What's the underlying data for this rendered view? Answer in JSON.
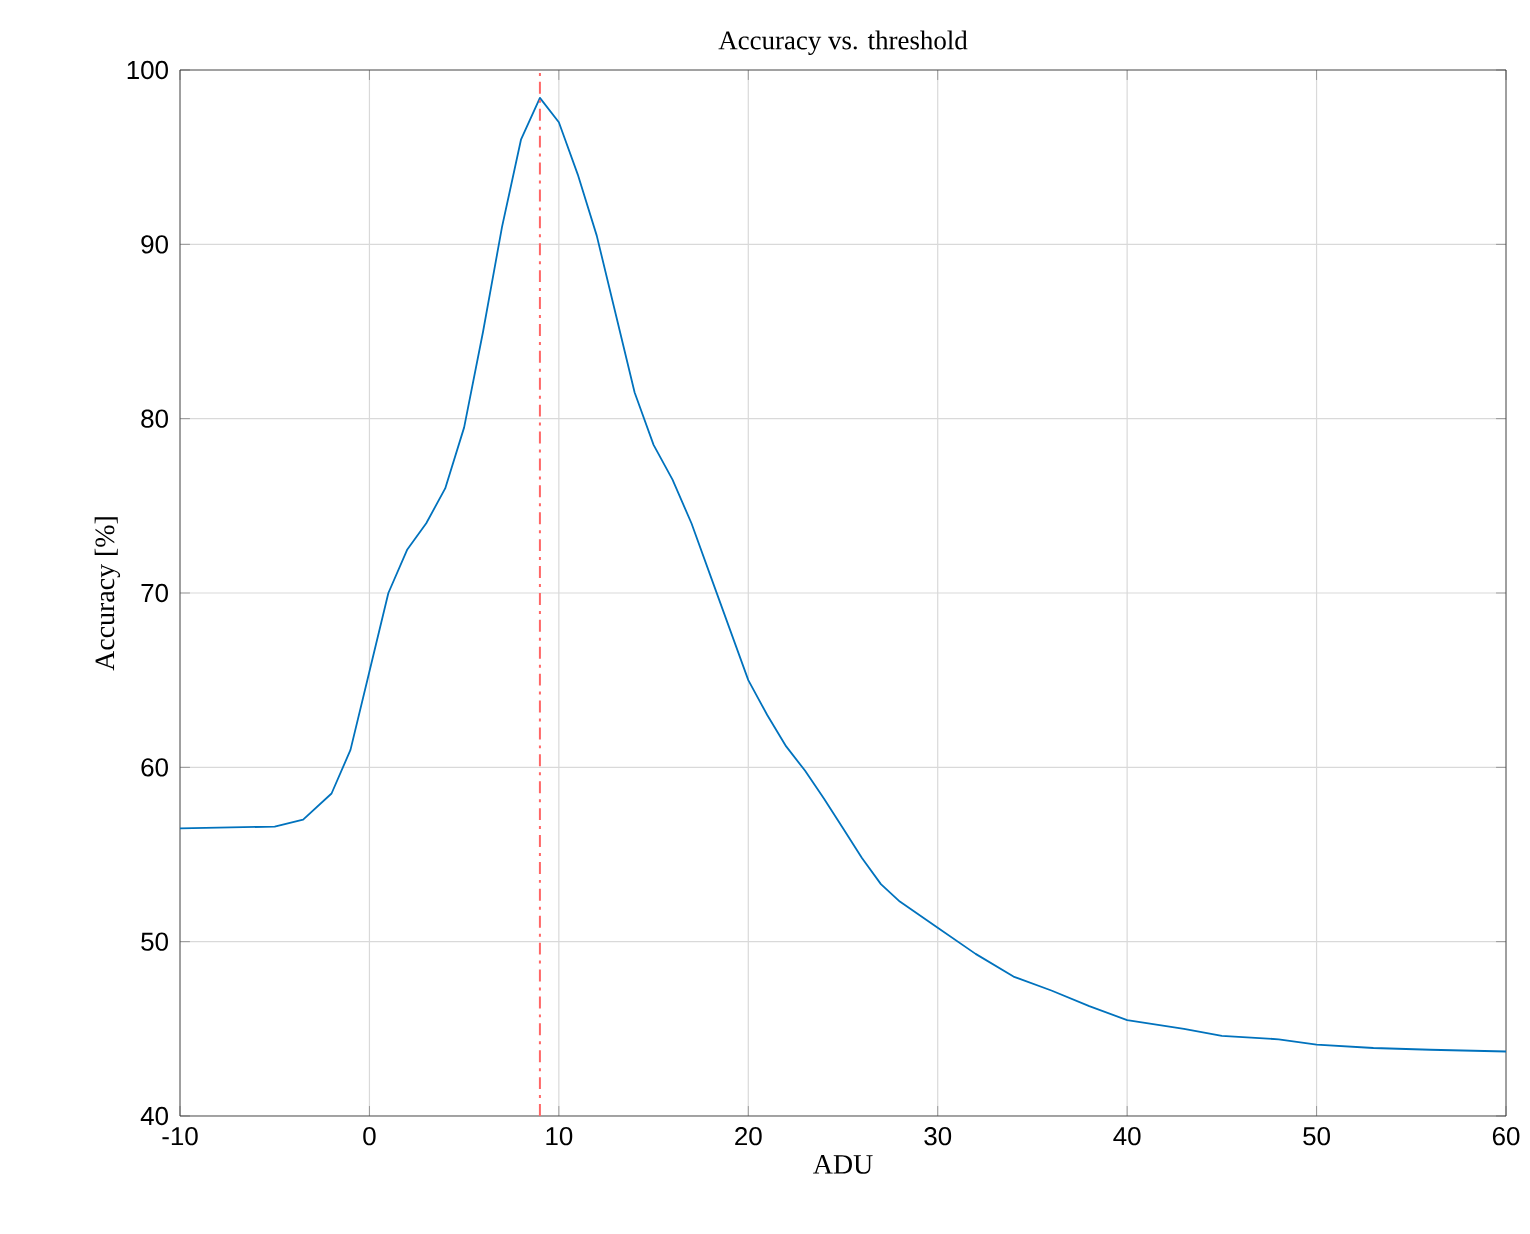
{
  "chart_data": {
    "type": "line",
    "title": "Accuracy vs. threshold",
    "xlabel": "ADU",
    "ylabel": "Accuracy [%]",
    "x": [
      -10,
      -5,
      -3.5,
      -2,
      -1,
      0,
      1,
      2,
      3,
      4,
      5,
      6,
      7,
      8,
      9,
      10,
      11,
      12,
      13,
      14,
      15,
      16,
      17,
      18,
      19,
      20,
      21,
      22,
      23,
      24,
      25,
      26,
      27,
      28,
      30,
      32,
      34,
      36,
      38,
      40,
      43,
      45,
      48,
      50,
      53,
      56,
      60
    ],
    "series": [
      {
        "color": "#0072bd",
        "values": [
          56.5,
          56.6,
          57,
          58.5,
          61,
          65.5,
          70,
          72.5,
          74,
          76,
          79.5,
          85,
          91,
          96,
          98.4,
          97,
          94,
          90.5,
          86,
          81.5,
          78.5,
          76.5,
          74,
          71,
          68,
          65,
          63,
          61.2,
          59.8,
          58.2,
          56.5,
          54.8,
          53.3,
          52.3,
          50.8,
          49.3,
          48,
          47.2,
          46.3,
          45.5,
          45,
          44.6,
          44.4,
          44.1,
          43.9,
          43.8,
          43.7
        ]
      }
    ],
    "xlim": [
      -10,
      60
    ],
    "xticks": [
      -10,
      0,
      10,
      20,
      30,
      40,
      50,
      60
    ],
    "ylim": [
      40,
      100
    ],
    "yticks": [
      40,
      50,
      60,
      70,
      80,
      90,
      100
    ],
    "ref_lines": [
      {
        "axis": "x",
        "value": 9,
        "color": "#ff6666",
        "line_style": "dashdot"
      }
    ],
    "grid": true
  }
}
